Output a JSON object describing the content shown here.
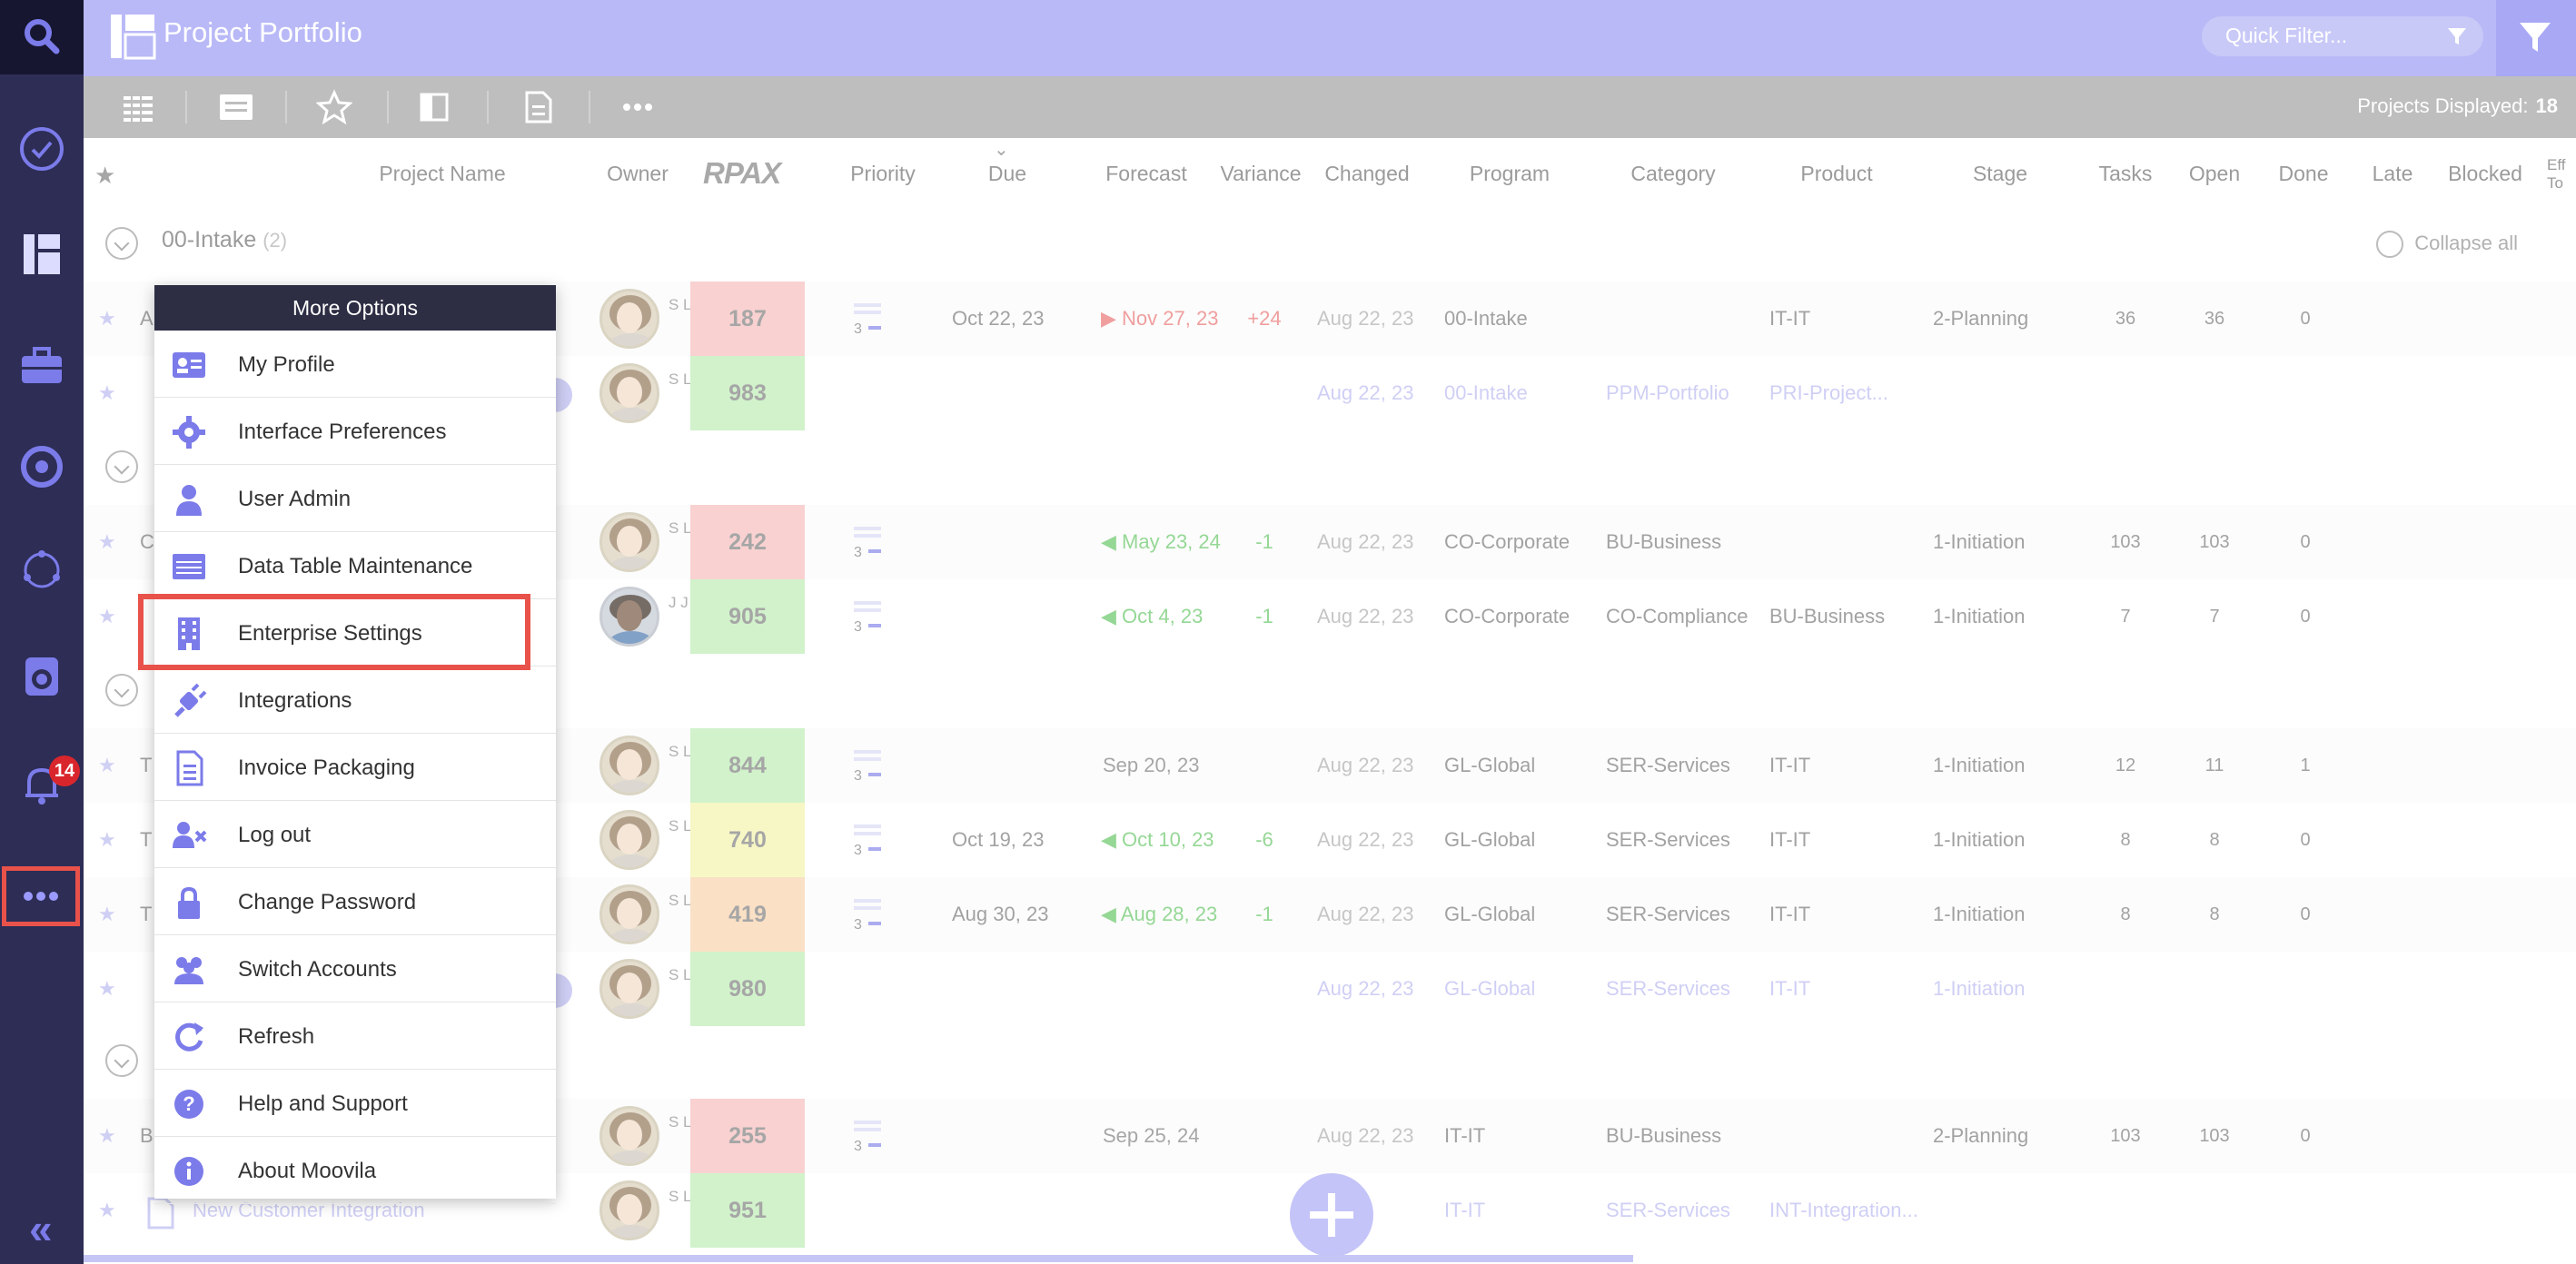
{
  "header": {
    "title": "Project Portfolio",
    "quick_filter_placeholder": "Quick Filter..."
  },
  "toolbar": {
    "projects_displayed_label": "Projects Displayed:",
    "projects_displayed_count": "18"
  },
  "notifications_badge": "14",
  "columns": [
    "Project Name",
    "Owner",
    "RPAX",
    "Priority",
    "Due",
    "Forecast",
    "Variance",
    "Changed",
    "Program",
    "Category",
    "Product",
    "Stage",
    "Tasks",
    "Open",
    "Done",
    "Late",
    "Blocked",
    "Eff To"
  ],
  "groups": [
    {
      "label": "00-Intake",
      "count": "(2)"
    }
  ],
  "collapse_all": "Collapse all",
  "rows": [
    {
      "name": "A",
      "initials": "S L",
      "rpax": "187",
      "rpax_color": "#f6b8b8",
      "due": "Oct 22, 23",
      "forecast": "Nov 27, 23",
      "forecast_color": "#e86a6a",
      "variance": "+24",
      "changed": "Aug 22, 23",
      "program": "00-Intake",
      "category": "",
      "product": "IT-IT",
      "stage": "2-Planning",
      "tasks": "36",
      "open": "36",
      "done": "0"
    },
    {
      "name": "",
      "initials": "S L",
      "rpax": "983",
      "rpax_color": "#b9ecb0",
      "due": "",
      "forecast": "",
      "forecast_color": "",
      "variance": "",
      "changed": "Aug 22, 23",
      "program": "00-Intake",
      "category": "PPM-Portfolio",
      "product": "PRI-Project...",
      "stage": "",
      "tasks": "",
      "open": "",
      "done": "",
      "faded": true
    },
    {
      "name": "C",
      "initials": "S L",
      "rpax": "242",
      "rpax_color": "#f6b8b8",
      "due": "",
      "forecast": "May 23, 24",
      "forecast_color": "#5cc25c",
      "variance": "-1",
      "changed": "Aug 22, 23",
      "program": "CO-Corporate",
      "category": "BU-Business",
      "product": "",
      "stage": "1-Initiation",
      "tasks": "103",
      "open": "103",
      "done": "0"
    },
    {
      "name": "",
      "initials": "J J",
      "rpax": "905",
      "rpax_color": "#b9ecb0",
      "due": "",
      "forecast": "Oct 4, 23",
      "forecast_color": "#5cc25c",
      "variance": "-1",
      "changed": "Aug 22, 23",
      "program": "CO-Corporate",
      "category": "CO-Compliance",
      "product": "BU-Business",
      "stage": "1-Initiation",
      "tasks": "7",
      "open": "7",
      "done": "0"
    },
    {
      "name": "T",
      "initials": "S L",
      "rpax": "844",
      "rpax_color": "#b9ecb0",
      "due": "",
      "forecast": "Sep 20, 23",
      "forecast_color": "#777",
      "variance": "",
      "changed": "Aug 22, 23",
      "program": "GL-Global",
      "category": "SER-Services",
      "product": "IT-IT",
      "stage": "1-Initiation",
      "tasks": "12",
      "open": "11",
      "done": "1"
    },
    {
      "name": "T",
      "initials": "S L",
      "rpax": "740",
      "rpax_color": "#f3f3a8",
      "due": "Oct 19, 23",
      "forecast": "Oct 10, 23",
      "forecast_color": "#5cc25c",
      "variance": "-6",
      "changed": "Aug 22, 23",
      "program": "GL-Global",
      "category": "SER-Services",
      "product": "IT-IT",
      "stage": "1-Initiation",
      "tasks": "8",
      "open": "8",
      "done": "0"
    },
    {
      "name": "T",
      "initials": "S L",
      "rpax": "419",
      "rpax_color": "#f7cfa6",
      "due": "Aug 30, 23",
      "forecast": "Aug 28, 23",
      "forecast_color": "#5cc25c",
      "variance": "-1",
      "changed": "Aug 22, 23",
      "program": "GL-Global",
      "category": "SER-Services",
      "product": "IT-IT",
      "stage": "1-Initiation",
      "tasks": "8",
      "open": "8",
      "done": "0"
    },
    {
      "name": "",
      "initials": "S L",
      "rpax": "980",
      "rpax_color": "#b9ecb0",
      "due": "",
      "forecast": "",
      "forecast_color": "",
      "variance": "",
      "changed": "Aug 22, 23",
      "program": "GL-Global",
      "category": "SER-Services",
      "product": "IT-IT",
      "stage": "1-Initiation",
      "tasks": "",
      "open": "",
      "done": "",
      "faded": true
    },
    {
      "name": "B",
      "initials": "S L",
      "rpax": "255",
      "rpax_color": "#f6b8b8",
      "due": "",
      "forecast": "Sep 25, 24",
      "forecast_color": "#777",
      "variance": "",
      "changed": "Aug 22, 23",
      "program": "IT-IT",
      "category": "BU-Business",
      "product": "",
      "stage": "2-Planning",
      "tasks": "103",
      "open": "103",
      "done": "0"
    },
    {
      "name": "New Customer Integration",
      "initials": "S L",
      "rpax": "951",
      "rpax_color": "#b9ecb0",
      "due": "",
      "forecast": "",
      "forecast_color": "",
      "variance": "",
      "changed": "2, 23",
      "program": "IT-IT",
      "category": "SER-Services",
      "product": "INT-Integration...",
      "stage": "",
      "tasks": "",
      "open": "",
      "done": "",
      "faded": true
    }
  ],
  "priority_value": "3",
  "menu": {
    "title": "More Options",
    "items": [
      {
        "label": "My Profile",
        "icon": "id-card-icon"
      },
      {
        "label": "Interface Preferences",
        "icon": "gear-icon"
      },
      {
        "label": "User Admin",
        "icon": "user-icon"
      },
      {
        "label": "Data Table Maintenance",
        "icon": "table-icon"
      },
      {
        "label": "Enterprise Settings",
        "icon": "building-icon"
      },
      {
        "label": "Integrations",
        "icon": "plug-icon"
      },
      {
        "label": "Invoice Packaging",
        "icon": "document-icon"
      },
      {
        "label": "Log out",
        "icon": "user-x-icon"
      },
      {
        "label": "Change Password",
        "icon": "lock-icon"
      },
      {
        "label": "Switch Accounts",
        "icon": "users-icon"
      },
      {
        "label": "Refresh",
        "icon": "refresh-icon"
      },
      {
        "label": "Help and Support",
        "icon": "help-icon"
      },
      {
        "label": "About Moovila",
        "icon": "info-icon"
      }
    ]
  },
  "colors": {
    "accent": "#7b7bea",
    "sidebar": "#2d2d56",
    "header": "#b9b9f7",
    "highlight": "#e8524a"
  }
}
